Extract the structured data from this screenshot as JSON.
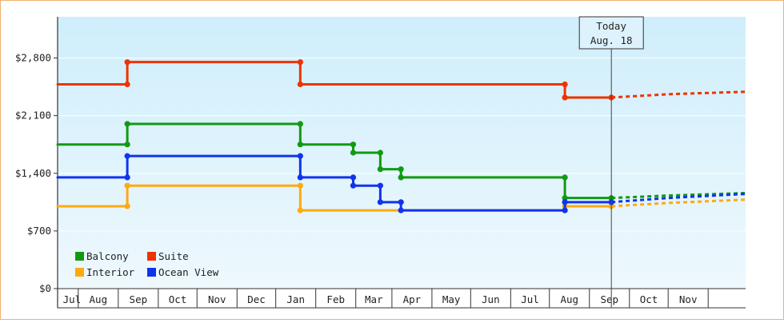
{
  "chart_data": {
    "type": "line",
    "title": "",
    "xlabel": "",
    "ylabel": "",
    "y_ticks": [
      "$0",
      "$700",
      "$1,400",
      "$2,100",
      "$2,800"
    ],
    "y_tick_values": [
      0,
      700,
      1400,
      2100,
      2800
    ],
    "ylim": [
      0,
      3300
    ],
    "x_months": [
      "Jul",
      "Aug",
      "Sep",
      "Oct",
      "Nov",
      "Dec",
      "Jan",
      "Feb",
      "Mar",
      "Apr",
      "May",
      "Jun",
      "Jul",
      "Aug",
      "Sep",
      "Oct",
      "Nov"
    ],
    "x_range": [
      "2024-06-15",
      "2025-11-30"
    ],
    "today": {
      "label": "Today",
      "date_label": "Aug. 18",
      "date": "2025-08-18"
    },
    "legend": {
      "placement": "bottom-left"
    },
    "series": [
      {
        "name": "Balcony",
        "color": "#119a11",
        "history": [
          [
            "2024-06-15",
            1750
          ],
          [
            "2024-08-08",
            1750
          ],
          [
            "2024-08-08",
            2000
          ],
          [
            "2024-12-20",
            2000
          ],
          [
            "2024-12-20",
            1750
          ],
          [
            "2025-01-30",
            1750
          ],
          [
            "2025-01-30",
            1650
          ],
          [
            "2025-02-20",
            1650
          ],
          [
            "2025-02-20",
            1450
          ],
          [
            "2025-03-08",
            1450
          ],
          [
            "2025-03-08",
            1350
          ],
          [
            "2025-07-13",
            1350
          ],
          [
            "2025-07-13",
            1100
          ],
          [
            "2025-08-18",
            1100
          ]
        ],
        "projection": [
          [
            "2025-08-18",
            1100
          ],
          [
            "2025-10-01",
            1130
          ],
          [
            "2025-11-30",
            1160
          ]
        ]
      },
      {
        "name": "Suite",
        "color": "#ee3300",
        "history": [
          [
            "2024-06-15",
            2480
          ],
          [
            "2024-08-08",
            2480
          ],
          [
            "2024-08-08",
            2750
          ],
          [
            "2024-12-20",
            2750
          ],
          [
            "2024-12-20",
            2480
          ],
          [
            "2025-07-13",
            2480
          ],
          [
            "2025-07-13",
            2320
          ],
          [
            "2025-08-18",
            2320
          ]
        ],
        "projection": [
          [
            "2025-08-18",
            2320
          ],
          [
            "2025-10-01",
            2360
          ],
          [
            "2025-11-30",
            2390
          ]
        ]
      },
      {
        "name": "Interior",
        "color": "#ffaa11",
        "history": [
          [
            "2024-06-15",
            1000
          ],
          [
            "2024-08-08",
            1000
          ],
          [
            "2024-08-08",
            1250
          ],
          [
            "2024-12-20",
            1250
          ],
          [
            "2024-12-20",
            950
          ],
          [
            "2025-07-13",
            950
          ],
          [
            "2025-07-13",
            1000
          ],
          [
            "2025-08-18",
            1000
          ]
        ],
        "projection": [
          [
            "2025-08-18",
            1000
          ],
          [
            "2025-10-01",
            1040
          ],
          [
            "2025-11-30",
            1080
          ]
        ]
      },
      {
        "name": "Ocean View",
        "color": "#1133ee",
        "history": [
          [
            "2024-06-15",
            1350
          ],
          [
            "2024-08-08",
            1350
          ],
          [
            "2024-08-08",
            1610
          ],
          [
            "2024-12-20",
            1610
          ],
          [
            "2024-12-20",
            1350
          ],
          [
            "2025-01-30",
            1350
          ],
          [
            "2025-01-30",
            1250
          ],
          [
            "2025-02-20",
            1250
          ],
          [
            "2025-02-20",
            1050
          ],
          [
            "2025-03-08",
            1050
          ],
          [
            "2025-03-08",
            950
          ],
          [
            "2025-07-13",
            950
          ],
          [
            "2025-07-13",
            1050
          ],
          [
            "2025-08-18",
            1050
          ]
        ],
        "projection": [
          [
            "2025-08-18",
            1050
          ],
          [
            "2025-10-01",
            1100
          ],
          [
            "2025-11-30",
            1150
          ]
        ]
      }
    ]
  }
}
